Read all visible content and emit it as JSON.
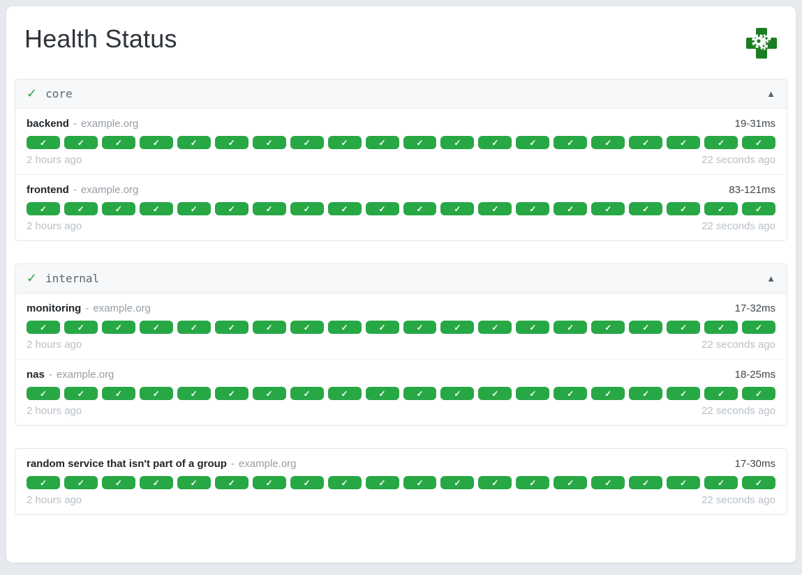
{
  "page": {
    "title": "Health Status"
  },
  "icons": {
    "logo": "health-cross-with-gears",
    "group_ok": "✓",
    "collapse": "▲",
    "segment_check": "✓"
  },
  "colors": {
    "success_green": "#28a745",
    "logo_green": "#1b7d22",
    "page_background": "#e6e9ed",
    "timestamp_gray": "#b9c0c7"
  },
  "sections": [
    {
      "type": "group",
      "name": "core",
      "endpoints": [
        {
          "name": "backend",
          "separator": "-",
          "host": "example.org",
          "response_time": "19-31ms",
          "oldest": "2 hours ago",
          "newest": "22 seconds ago",
          "results": 20,
          "status": "up"
        },
        {
          "name": "frontend",
          "separator": "-",
          "host": "example.org",
          "response_time": "83-121ms",
          "oldest": "2 hours ago",
          "newest": "22 seconds ago",
          "results": 20,
          "status": "up"
        }
      ]
    },
    {
      "type": "group",
      "name": "internal",
      "endpoints": [
        {
          "name": "monitoring",
          "separator": "-",
          "host": "example.org",
          "response_time": "17-32ms",
          "oldest": "2 hours ago",
          "newest": "22 seconds ago",
          "results": 20,
          "status": "up"
        },
        {
          "name": "nas",
          "separator": "-",
          "host": "example.org",
          "response_time": "18-25ms",
          "oldest": "2 hours ago",
          "newest": "22 seconds ago",
          "results": 20,
          "status": "up"
        }
      ]
    },
    {
      "type": "ungrouped",
      "name": "",
      "endpoints": [
        {
          "name": "random service that isn't part of a group",
          "separator": "-",
          "host": "example.org",
          "response_time": "17-30ms",
          "oldest": "2 hours ago",
          "newest": "22 seconds ago",
          "results": 20,
          "status": "up"
        }
      ]
    }
  ]
}
